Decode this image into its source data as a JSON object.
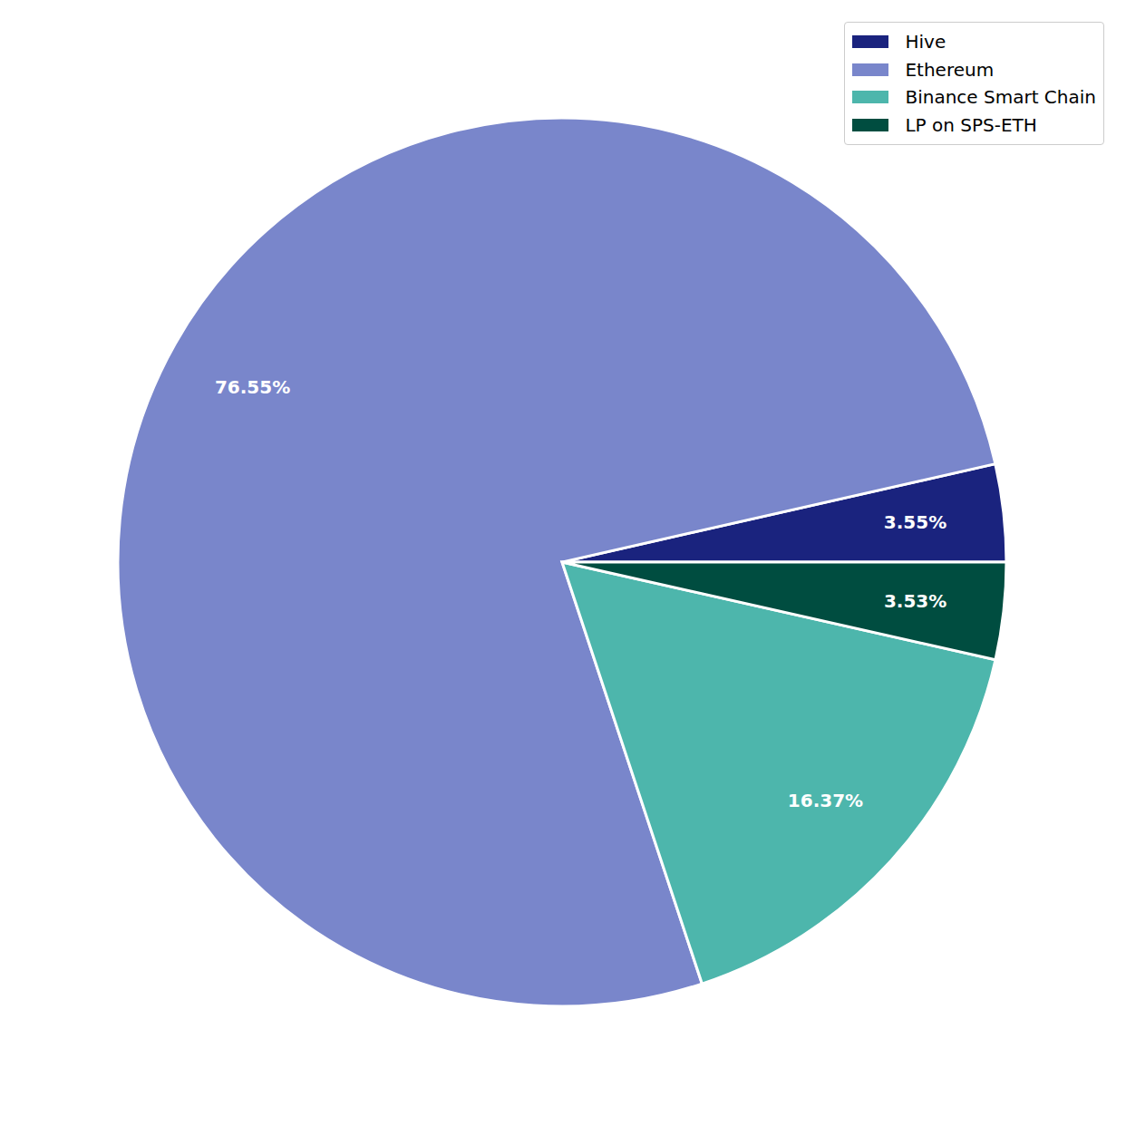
{
  "chart_data": {
    "type": "pie",
    "categories": [
      "Hive",
      "Ethereum",
      "Binance Smart Chain",
      "LP on SPS-ETH"
    ],
    "values": [
      3.55,
      76.55,
      16.37,
      3.53
    ],
    "value_labels": [
      "3.55%",
      "76.55%",
      "16.37%",
      "3.53%"
    ],
    "colors": [
      "#1a237e",
      "#7986cb",
      "#4db6ac",
      "#004d40"
    ],
    "data_labels": true,
    "legend": "upper right"
  }
}
